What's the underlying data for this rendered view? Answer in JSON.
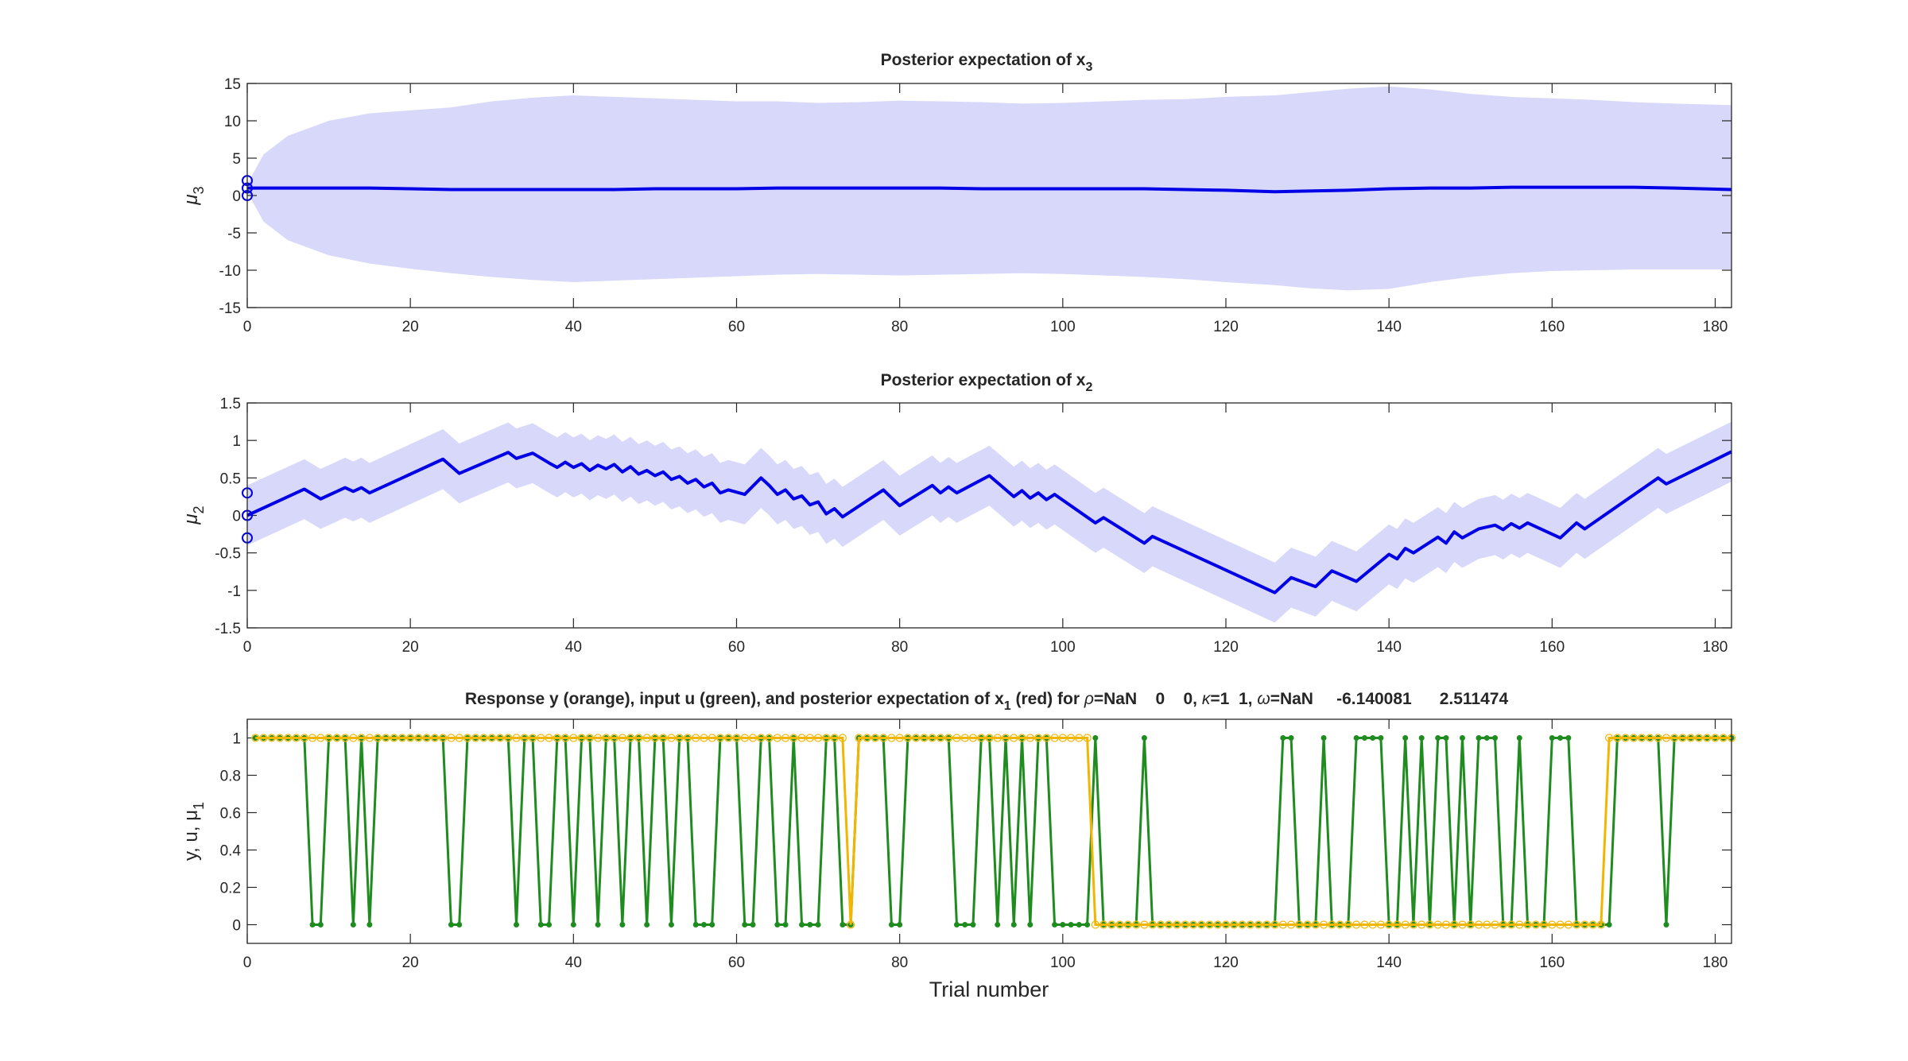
{
  "chart_data": [
    {
      "type": "line",
      "title": "Posterior expectation of x",
      "title_subscript": "3",
      "ylabel": "μ",
      "ylabel_subscript": "3",
      "xlim": [
        0,
        182
      ],
      "ylim": [
        -15,
        15
      ],
      "xticks": [
        0,
        20,
        40,
        60,
        80,
        100,
        120,
        140,
        160,
        180
      ],
      "yticks": [
        -15,
        -10,
        -5,
        0,
        5,
        10,
        15
      ],
      "xtick_labels": [
        "0",
        "20",
        "40",
        "60",
        "80",
        "100",
        "120",
        "140",
        "160",
        "180"
      ],
      "ytick_labels": [
        "-15",
        "-10",
        "-5",
        "0",
        "5",
        "10",
        "15"
      ],
      "colors": {
        "line": "#0000e6",
        "band": "#d8d8fb"
      },
      "prior_markers": [
        0,
        1,
        2
      ],
      "mean_x": [
        0,
        2,
        5,
        10,
        15,
        20,
        25,
        30,
        35,
        40,
        45,
        50,
        55,
        60,
        65,
        70,
        75,
        80,
        85,
        90,
        95,
        100,
        105,
        110,
        115,
        120,
        126,
        130,
        135,
        140,
        145,
        150,
        155,
        160,
        165,
        170,
        175,
        182
      ],
      "mean_y": [
        1,
        1,
        1,
        1,
        1,
        0.9,
        0.8,
        0.8,
        0.8,
        0.8,
        0.8,
        0.9,
        0.9,
        0.9,
        1,
        1,
        1,
        1,
        1,
        0.9,
        0.9,
        0.9,
        0.9,
        0.9,
        0.8,
        0.7,
        0.5,
        0.6,
        0.7,
        0.9,
        1,
        1,
        1.1,
        1.1,
        1.1,
        1.1,
        1,
        0.8
      ],
      "band_x": [
        0,
        2,
        5,
        10,
        15,
        20,
        25,
        30,
        35,
        40,
        45,
        50,
        55,
        60,
        65,
        70,
        75,
        80,
        85,
        90,
        95,
        100,
        105,
        110,
        115,
        120,
        126,
        130,
        135,
        140,
        145,
        150,
        155,
        160,
        165,
        170,
        175,
        182
      ],
      "band_upper": [
        1.5,
        5.5,
        8,
        10,
        11,
        11.4,
        11.8,
        12.6,
        13.1,
        13.4,
        13.2,
        13,
        12.8,
        12.6,
        12.6,
        12.4,
        12.5,
        12.7,
        12.6,
        12.5,
        12.3,
        12.4,
        12.6,
        12.8,
        12.9,
        13.2,
        13.4,
        13.8,
        14.3,
        14.6,
        14.2,
        13.6,
        13.2,
        13,
        12.8,
        12.5,
        12.3,
        12.1
      ],
      "band_lower": [
        0.5,
        -3.5,
        -6,
        -8,
        -9.1,
        -9.8,
        -10.4,
        -10.9,
        -11.3,
        -11.6,
        -11.4,
        -11.2,
        -11,
        -10.8,
        -10.6,
        -10.5,
        -10.6,
        -10.7,
        -10.6,
        -10.5,
        -10.4,
        -10.5,
        -10.7,
        -10.9,
        -11.2,
        -11.6,
        -12,
        -12.4,
        -12.7,
        -12.5,
        -11.6,
        -10.9,
        -10.4,
        -10.1,
        -10,
        -9.9,
        -9.9,
        -9.9
      ]
    },
    {
      "type": "line",
      "title": "Posterior expectation of x",
      "title_subscript": "2",
      "ylabel": "μ",
      "ylabel_subscript": "2",
      "xlim": [
        0,
        182
      ],
      "ylim": [
        -1.5,
        1.5
      ],
      "xticks": [
        0,
        20,
        40,
        60,
        80,
        100,
        120,
        140,
        160,
        180
      ],
      "yticks": [
        -1.5,
        -1,
        -0.5,
        0,
        0.5,
        1,
        1.5
      ],
      "xtick_labels": [
        "0",
        "20",
        "40",
        "60",
        "80",
        "100",
        "120",
        "140",
        "160",
        "180"
      ],
      "ytick_labels": [
        "-1.5",
        "-1",
        "-0.5",
        "0",
        "0.5",
        "1",
        "1.5"
      ],
      "colors": {
        "line": "#0000e6",
        "band": "#d8d8fb"
      },
      "prior_markers": [
        -0.3,
        0,
        0.3
      ],
      "band_halfwidth": 0.4,
      "x": [
        0,
        7,
        9,
        12,
        13,
        14,
        15,
        24,
        26,
        32,
        33,
        35,
        37,
        38,
        39,
        40,
        41,
        42,
        43,
        44,
        45,
        46,
        47,
        48,
        49,
        50,
        51,
        52,
        53,
        54,
        55,
        56,
        57,
        58,
        59,
        61,
        63,
        64,
        65,
        66,
        67,
        68,
        69,
        70,
        71,
        72,
        73,
        78,
        80,
        84,
        85,
        86,
        87,
        91,
        94,
        95,
        96,
        97,
        98,
        99,
        104,
        105,
        110,
        111,
        126,
        128,
        131,
        133,
        136,
        140,
        141,
        142,
        143,
        146,
        147,
        148,
        149,
        151,
        153,
        154,
        155,
        156,
        157,
        158,
        161,
        163,
        164,
        173,
        174,
        182
      ],
      "y": [
        0,
        0.35,
        0.22,
        0.37,
        0.32,
        0.37,
        0.3,
        0.75,
        0.56,
        0.84,
        0.76,
        0.83,
        0.7,
        0.64,
        0.71,
        0.64,
        0.69,
        0.6,
        0.67,
        0.62,
        0.68,
        0.58,
        0.65,
        0.55,
        0.6,
        0.53,
        0.58,
        0.48,
        0.52,
        0.43,
        0.48,
        0.38,
        0.43,
        0.3,
        0.34,
        0.28,
        0.5,
        0.4,
        0.28,
        0.34,
        0.22,
        0.26,
        0.14,
        0.18,
        0.02,
        0.09,
        -0.02,
        0.34,
        0.13,
        0.4,
        0.3,
        0.38,
        0.3,
        0.53,
        0.25,
        0.33,
        0.23,
        0.3,
        0.21,
        0.28,
        -0.1,
        -0.03,
        -0.37,
        -0.28,
        -1.03,
        -0.83,
        -0.95,
        -0.74,
        -0.88,
        -0.52,
        -0.58,
        -0.44,
        -0.5,
        -0.29,
        -0.37,
        -0.22,
        -0.3,
        -0.18,
        -0.13,
        -0.19,
        -0.11,
        -0.17,
        -0.1,
        -0.15,
        -0.3,
        -0.1,
        -0.18,
        0.5,
        0.42,
        0.85
      ]
    },
    {
      "type": "line",
      "title_text": "Response y (orange), input u (green), and posterior expectation of x",
      "title_sub": "1",
      "title_rest_1": " (red) for ",
      "title_rho": "ρ",
      "title_rest_2": "=NaN    0    0, ",
      "title_kappa": "κ",
      "title_rest_3": "=1  1, ",
      "title_omega": "ω",
      "title_rest_4": "=NaN     -6.140081      2.511474",
      "ylabel_text": "y, u, μ",
      "ylabel_sub": "1",
      "xlabel": "Trial number",
      "xlim": [
        0,
        182
      ],
      "ylim": [
        -0.1,
        1.1
      ],
      "xticks": [
        0,
        20,
        40,
        60,
        80,
        100,
        120,
        140,
        160,
        180
      ],
      "yticks": [
        0,
        0.2,
        0.4,
        0.6,
        0.8,
        1
      ],
      "xtick_labels": [
        "0",
        "20",
        "40",
        "60",
        "80",
        "100",
        "120",
        "140",
        "160",
        "180"
      ],
      "ytick_labels": [
        "0",
        "0.2",
        "0.4",
        "0.6",
        "0.8",
        "1"
      ],
      "colors": {
        "input_u": "#1f8c1f",
        "response_y": "#f2b600"
      },
      "series": [
        {
          "label": "input u (green)",
          "values": [
            1,
            1,
            1,
            1,
            1,
            1,
            1,
            0,
            0,
            1,
            1,
            1,
            0,
            1,
            0,
            1,
            1,
            1,
            1,
            1,
            1,
            1,
            1,
            1,
            0,
            0,
            1,
            1,
            1,
            1,
            1,
            1,
            0,
            1,
            1,
            0,
            0,
            1,
            1,
            0,
            1,
            1,
            0,
            1,
            1,
            0,
            1,
            1,
            0,
            1,
            1,
            0,
            1,
            1,
            0,
            0,
            0,
            1,
            1,
            1,
            0,
            0,
            1,
            1,
            0,
            0,
            1,
            0,
            0,
            0,
            1,
            1,
            0,
            0,
            1,
            1,
            1,
            1,
            0,
            0,
            1,
            1,
            1,
            1,
            1,
            1,
            0,
            0,
            0,
            1,
            1,
            0,
            1,
            0,
            1,
            0,
            1,
            1,
            0,
            0,
            0,
            0,
            0,
            1,
            0,
            0,
            0,
            0,
            0,
            1,
            0,
            0,
            0,
            0,
            0,
            0,
            0,
            0,
            0,
            0,
            0,
            0,
            0,
            0,
            0,
            0,
            1,
            1,
            0,
            0,
            0,
            1,
            0,
            0,
            0,
            1,
            1,
            1,
            1,
            0,
            0,
            1,
            0,
            1,
            0,
            1,
            1,
            0,
            1,
            0,
            1,
            1,
            1,
            0,
            0,
            1,
            0,
            0,
            0,
            1,
            1,
            1,
            0,
            0,
            0,
            0,
            0,
            1,
            1,
            1,
            1,
            1,
            1,
            0,
            1,
            1,
            1,
            1,
            1,
            1,
            1,
            1
          ]
        },
        {
          "label": "response y (orange)",
          "change_points": [
            [
              73,
              1
            ],
            [
              74,
              0
            ],
            [
              75,
              1
            ],
            [
              103,
              1
            ],
            [
              104,
              0
            ],
            [
              166,
              0
            ],
            [
              167,
              1
            ]
          ]
        }
      ]
    }
  ]
}
